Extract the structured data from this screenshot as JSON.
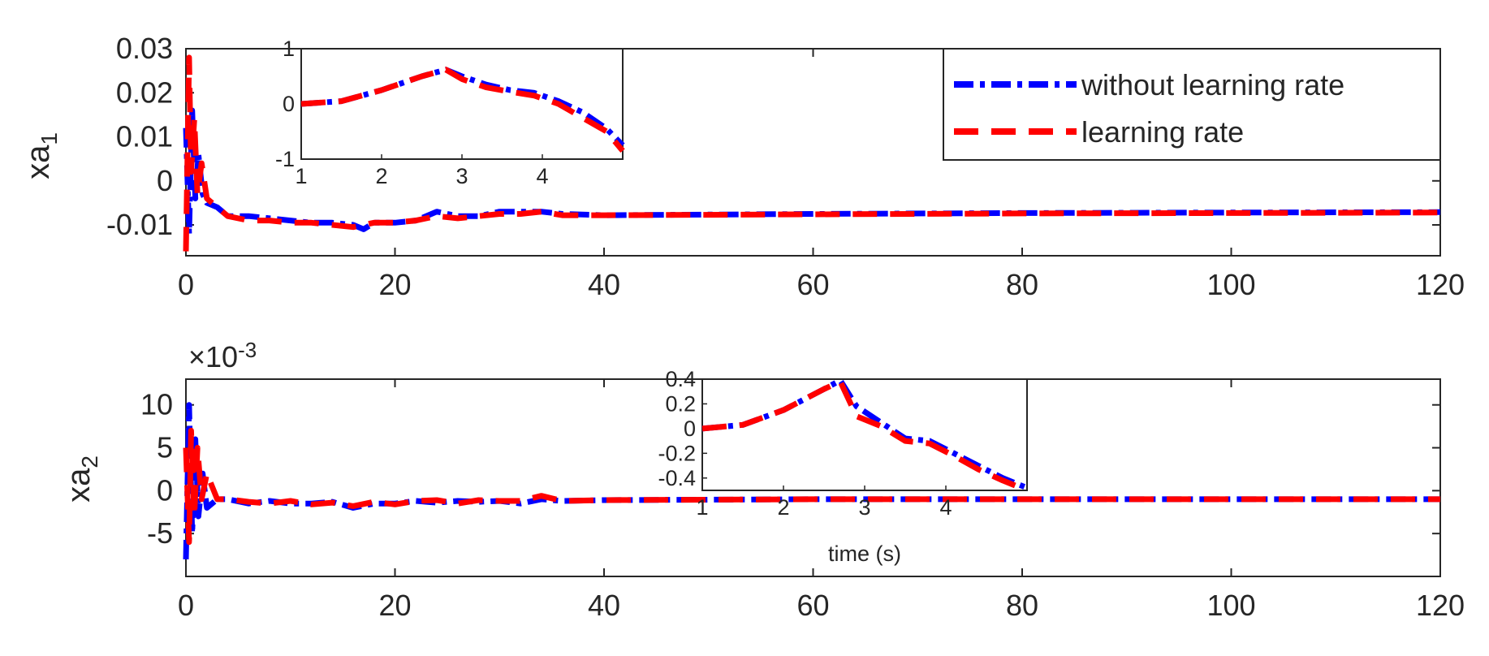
{
  "figure": {
    "x_end": 120,
    "colors": {
      "series_a": "#0000ff",
      "series_b": "#ff0000",
      "axis": "#262626"
    }
  },
  "legend": {
    "entries": [
      {
        "label": "without learning rate",
        "color": "#0000ff",
        "style": "dash-dot"
      },
      {
        "label": "learning rate",
        "color": "#ff0000",
        "style": "dashed"
      }
    ],
    "placement": "top-right of top panel"
  },
  "chart_data": [
    {
      "id": "xa1",
      "type": "line",
      "ylabel_main": "xa",
      "ylabel_sub": "1",
      "xlim": [
        0,
        120
      ],
      "ylim": [
        -0.017,
        0.03
      ],
      "xticks": [
        0,
        20,
        40,
        60,
        80,
        100,
        120
      ],
      "yticks": [
        -0.01,
        0,
        0.01,
        0.02,
        0.03
      ],
      "ytick_labels": [
        "-0.01",
        "0",
        "0.01",
        "0.02",
        "0.03"
      ],
      "exponent_label": "",
      "series": [
        {
          "name": "without learning rate",
          "color": "#0000ff",
          "x": [
            0,
            0.3,
            0.6,
            0.9,
            1.2,
            1.6,
            2,
            3,
            4,
            6,
            8,
            10,
            12,
            14,
            16,
            17,
            18,
            20,
            22,
            24,
            26,
            28,
            30,
            32,
            34,
            36,
            40,
            60,
            80,
            100,
            120
          ],
          "y": [
            0.012,
            -0.012,
            0.016,
            -0.004,
            0.006,
            -0.003,
            -0.005,
            -0.006,
            -0.008,
            -0.008,
            -0.0085,
            -0.009,
            -0.0095,
            -0.0095,
            -0.01,
            -0.011,
            -0.0095,
            -0.0095,
            -0.009,
            -0.007,
            -0.008,
            -0.008,
            -0.007,
            -0.007,
            -0.007,
            -0.0075,
            -0.0078,
            -0.0075,
            -0.0073,
            -0.0072,
            -0.0071
          ]
        },
        {
          "name": "learning rate",
          "color": "#ff0000",
          "x": [
            0,
            0.3,
            0.5,
            0.8,
            1.1,
            1.5,
            2,
            3,
            4,
            6,
            8,
            10,
            12,
            14,
            16,
            18,
            20,
            22,
            24,
            26,
            28,
            30,
            32,
            34,
            36,
            40,
            60,
            80,
            100,
            120
          ],
          "y": [
            -0.016,
            0.028,
            0.002,
            0.014,
            -0.003,
            0.004,
            -0.004,
            -0.006,
            -0.008,
            -0.009,
            -0.009,
            -0.0095,
            -0.0095,
            -0.01,
            -0.0105,
            -0.0095,
            -0.0095,
            -0.009,
            -0.008,
            -0.0085,
            -0.008,
            -0.0075,
            -0.0075,
            -0.007,
            -0.0078,
            -0.0078,
            -0.0076,
            -0.0074,
            -0.0073,
            -0.0072
          ]
        }
      ],
      "inset": {
        "xlim": [
          1,
          5
        ],
        "ylim": [
          -1,
          1
        ],
        "xticks": [
          1,
          2,
          3,
          4
        ],
        "yticks": [
          -1,
          0,
          1
        ],
        "ytick_labels": [
          "-1",
          "0",
          "1"
        ],
        "series": [
          {
            "name": "without learning rate",
            "color": "#0000ff",
            "x": [
              1,
              1.5,
              2,
              2.5,
              2.8,
              3,
              3.3,
              3.6,
              3.9,
              4.2,
              4.5,
              4.8,
              5
            ],
            "y": [
              0,
              0.05,
              0.25,
              0.5,
              0.62,
              0.5,
              0.35,
              0.25,
              0.2,
              0.05,
              -0.15,
              -0.45,
              -0.75
            ]
          },
          {
            "name": "learning rate",
            "color": "#ff0000",
            "x": [
              1,
              1.5,
              2,
              2.5,
              2.8,
              3,
              3.3,
              3.6,
              3.9,
              4.2,
              4.5,
              4.8,
              5
            ],
            "y": [
              0,
              0.05,
              0.25,
              0.5,
              0.62,
              0.45,
              0.3,
              0.22,
              0.15,
              0.0,
              -0.25,
              -0.5,
              -0.85
            ]
          }
        ]
      }
    },
    {
      "id": "xa2",
      "type": "line",
      "ylabel_main": "xa",
      "ylabel_sub": "2",
      "xlim": [
        0,
        120
      ],
      "ylim": [
        -10,
        13
      ],
      "xticks": [
        0,
        20,
        40,
        60,
        80,
        100,
        120
      ],
      "yticks": [
        -5,
        0,
        5,
        10
      ],
      "ytick_labels": [
        "-5",
        "0",
        "5",
        "10"
      ],
      "exponent_label": "×10",
      "exponent_power": "-3",
      "series": [
        {
          "name": "without learning rate",
          "color": "#0000ff",
          "x": [
            0,
            0.3,
            0.6,
            0.9,
            1.2,
            1.6,
            2,
            3,
            4,
            6,
            8,
            10,
            12,
            14,
            16,
            18,
            20,
            22,
            24,
            26,
            28,
            30,
            32,
            34,
            36,
            40,
            60,
            80,
            100,
            120
          ],
          "y": [
            -8,
            10,
            -5,
            6,
            -3,
            2,
            -2,
            -1,
            -1,
            -1.5,
            -1.2,
            -1.5,
            -1.5,
            -1.3,
            -2,
            -1.5,
            -1.5,
            -1.2,
            -1.4,
            -1.2,
            -1.3,
            -1.2,
            -1.5,
            -1,
            -1.2,
            -1.1,
            -1,
            -1,
            -1,
            -1
          ]
        },
        {
          "name": "learning rate",
          "color": "#ff0000",
          "x": [
            0,
            0.3,
            0.5,
            0.8,
            1.1,
            1.5,
            2,
            3,
            4,
            6,
            8,
            10,
            12,
            14,
            16,
            18,
            20,
            22,
            24,
            26,
            28,
            30,
            32,
            34,
            36,
            40,
            60,
            80,
            100,
            120
          ],
          "y": [
            5,
            -6,
            7,
            -3,
            5,
            -1,
            2,
            -1,
            -1,
            -1.3,
            -1.5,
            -1.2,
            -1.6,
            -1.4,
            -1.8,
            -1.3,
            -1.6,
            -1.2,
            -1.1,
            -1.5,
            -1.1,
            -1.2,
            -1.2,
            -0.6,
            -1.2,
            -1.1,
            -1,
            -1,
            -1,
            -1
          ]
        }
      ],
      "inset": {
        "xlim": [
          1,
          5
        ],
        "ylim": [
          -0.5,
          0.4
        ],
        "xticks": [
          1,
          2,
          3,
          4
        ],
        "yticks": [
          -0.4,
          -0.2,
          0,
          0.2,
          0.4
        ],
        "ytick_labels": [
          "-0.4",
          "-0.2",
          "0",
          "0.2",
          "0.4"
        ],
        "xlabel": "time (s)",
        "series": [
          {
            "name": "without learning rate",
            "color": "#0000ff",
            "x": [
              1,
              1.5,
              2,
              2.5,
              2.7,
              2.9,
              3.2,
              3.5,
              3.8,
              4.1,
              4.4,
              4.7,
              5
            ],
            "y": [
              0,
              0.03,
              0.15,
              0.32,
              0.39,
              0.18,
              0.05,
              -0.08,
              -0.1,
              -0.2,
              -0.3,
              -0.4,
              -0.48
            ]
          },
          {
            "name": "learning rate",
            "color": "#ff0000",
            "x": [
              1,
              1.5,
              2,
              2.5,
              2.7,
              2.9,
              3.2,
              3.5,
              3.8,
              4.1,
              4.4,
              4.7,
              5
            ],
            "y": [
              0,
              0.03,
              0.15,
              0.32,
              0.38,
              0.1,
              0.02,
              -0.1,
              -0.12,
              -0.22,
              -0.33,
              -0.42,
              -0.5
            ]
          }
        ]
      }
    }
  ]
}
